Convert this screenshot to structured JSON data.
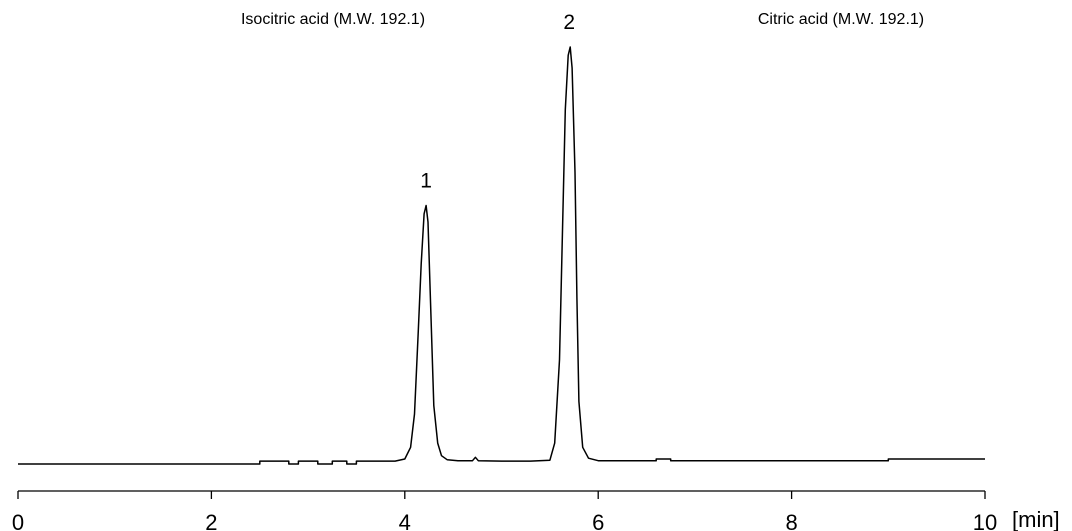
{
  "chart_data": {
    "type": "line",
    "xlim": [
      0,
      10
    ],
    "x_ticks": [
      "0",
      "2",
      "4",
      "6",
      "8",
      "10"
    ],
    "x_unit": "[min]",
    "y_axis_visible": false,
    "grid": false,
    "line_color": "#000000",
    "compounds": [
      {
        "peak_number": "1",
        "name": "Isocitric acid (M.W. 192.1)",
        "retention_time": 4.22,
        "relative_height": 0.62
      },
      {
        "peak_number": "2",
        "name": "Citric acid (M.W. 192.1)",
        "retention_time": 5.7,
        "relative_height": 1.0
      }
    ],
    "baseline_trace": {
      "x": [
        0,
        2.5,
        2.5,
        2.8,
        2.8,
        2.9,
        2.9,
        3.1,
        3.1,
        3.25,
        3.25,
        3.4,
        3.4,
        3.5,
        3.5,
        3.6,
        3.6,
        3.9,
        4.0,
        4.06,
        4.1,
        4.14,
        4.17,
        4.2,
        4.22,
        4.24,
        4.27,
        4.3,
        4.34,
        4.38,
        4.44,
        4.55,
        4.7,
        4.73,
        4.76,
        5.0,
        5.3,
        5.5,
        5.55,
        5.6,
        5.63,
        5.66,
        5.69,
        5.71,
        5.73,
        5.76,
        5.78,
        5.8,
        5.84,
        5.9,
        6.0,
        6.3,
        6.6,
        6.6,
        6.75,
        6.75,
        7.5,
        9.0,
        9.0,
        10.0
      ],
      "y": [
        0.0,
        0.0,
        0.007,
        0.007,
        0.0,
        0.0,
        0.007,
        0.007,
        0.0,
        0.0,
        0.007,
        0.007,
        0.0,
        0.0,
        0.007,
        0.007,
        0.007,
        0.007,
        0.012,
        0.04,
        0.12,
        0.32,
        0.48,
        0.6,
        0.62,
        0.58,
        0.36,
        0.14,
        0.05,
        0.02,
        0.01,
        0.008,
        0.008,
        0.016,
        0.008,
        0.007,
        0.007,
        0.009,
        0.05,
        0.25,
        0.55,
        0.85,
        0.98,
        1.0,
        0.95,
        0.7,
        0.4,
        0.15,
        0.04,
        0.014,
        0.008,
        0.008,
        0.008,
        0.012,
        0.012,
        0.008,
        0.008,
        0.008,
        0.012,
        0.012
      ]
    }
  }
}
